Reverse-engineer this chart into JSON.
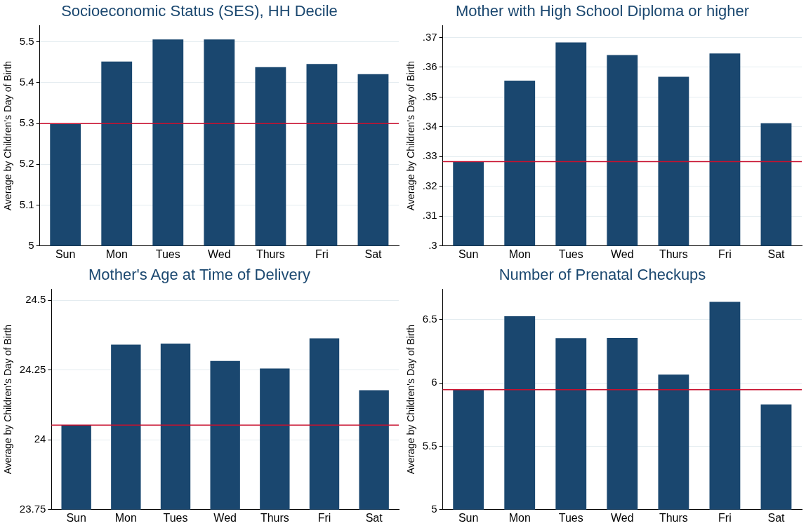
{
  "chart_data": [
    {
      "type": "bar",
      "title": "Socioeconomic Status (SES), HH Decile",
      "ylabel": "Average by Children's Day of Birth",
      "categories": [
        "Sun",
        "Mon",
        "Tues",
        "Wed",
        "Thurs",
        "Fri",
        "Sat"
      ],
      "values": [
        5.3,
        5.452,
        5.506,
        5.506,
        5.438,
        5.446,
        5.421
      ],
      "color": "#1a476f",
      "ylim": [
        5,
        5.54
      ],
      "yticks": [
        5,
        5.1,
        5.2,
        5.3,
        5.4,
        5.5
      ],
      "grid": "y",
      "ref_lines": [
        {
          "axis": "y",
          "value": 5.3,
          "color": "#c8102e"
        }
      ]
    },
    {
      "type": "bar",
      "title": "Mother with High School Diploma or higher",
      "ylabel": "Average by Children's Day of Birth",
      "categories": [
        "Sun",
        "Mon",
        "Tues",
        "Wed",
        "Thurs",
        "Fri",
        "Sat"
      ],
      "values": [
        0.3283,
        0.3555,
        0.3683,
        0.3641,
        0.3568,
        0.3646,
        0.3412
      ],
      "color": "#1a476f",
      "ylim": [
        0.3,
        0.374
      ],
      "yticks": [
        {
          "value": 0.3,
          "label": ".3"
        },
        {
          "value": 0.31,
          "label": ".31"
        },
        {
          "value": 0.32,
          "label": ".32"
        },
        {
          "value": 0.33,
          "label": ".33"
        },
        {
          "value": 0.34,
          "label": ".34"
        },
        {
          "value": 0.35,
          "label": ".35"
        },
        {
          "value": 0.36,
          "label": ".36"
        },
        {
          "value": 0.37,
          "label": ".37"
        }
      ],
      "grid": "y",
      "ref_lines": [
        {
          "axis": "y",
          "value": 0.3283,
          "color": "#c8102e"
        }
      ]
    },
    {
      "type": "bar",
      "title": "Mother's Age at Time of Delivery",
      "ylabel": "Average by Children's Day of Birth",
      "categories": [
        "Sun",
        "Mon",
        "Tues",
        "Wed",
        "Thurs",
        "Fri",
        "Sat"
      ],
      "values": [
        24.053,
        24.341,
        24.345,
        24.283,
        24.256,
        24.364,
        24.178
      ],
      "color": "#1a476f",
      "ylim": [
        23.75,
        24.54
      ],
      "yticks": [
        23.75,
        24,
        24.25,
        24.5
      ],
      "grid": "y",
      "ref_lines": [
        {
          "axis": "y",
          "value": 24.053,
          "color": "#c8102e"
        }
      ]
    },
    {
      "type": "bar",
      "title": "Number of Prenatal Checkups",
      "ylabel": "Average by Children's Day of Birth",
      "categories": [
        "Sun",
        "Mon",
        "Tues",
        "Wed",
        "Thurs",
        "Fri",
        "Sat"
      ],
      "values": [
        5.946,
        6.527,
        6.353,
        6.355,
        6.066,
        6.64,
        5.831
      ],
      "color": "#1a476f",
      "ylim": [
        5,
        6.74
      ],
      "yticks": [
        5,
        5.5,
        6,
        6.5
      ],
      "grid": "y",
      "ref_lines": [
        {
          "axis": "y",
          "value": 5.946,
          "color": "#c8102e"
        }
      ]
    }
  ]
}
